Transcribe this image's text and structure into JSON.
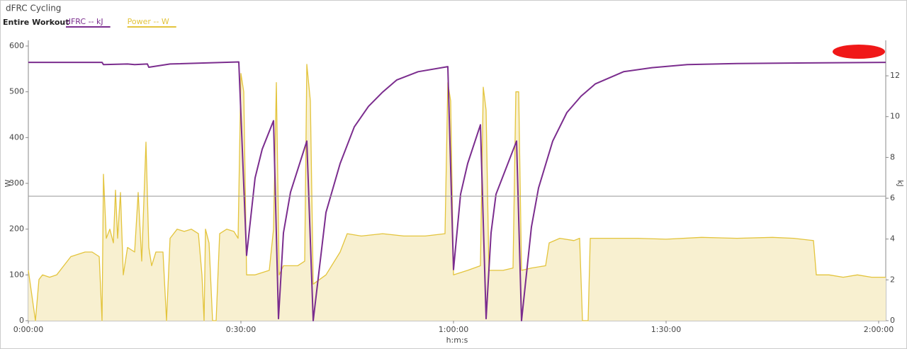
{
  "chart_data": {
    "type": "line",
    "title": "dFRC Cycling",
    "subtitle": "Entire Workout",
    "x_label": "h:m:s",
    "y_label": "W",
    "y2_label": "kJ",
    "xlim": [
      0,
      121
    ],
    "xticks": [
      {
        "value": 0,
        "label": "0:00:00"
      },
      {
        "value": 30,
        "label": "0:30:00"
      },
      {
        "value": 60,
        "label": "1:00:00"
      },
      {
        "value": 90,
        "label": "1:30:00"
      },
      {
        "value": 120,
        "label": "2:00:00"
      }
    ],
    "ylim": [
      0,
      600
    ],
    "yticks": [
      0,
      100,
      200,
      300,
      400,
      500,
      600
    ],
    "y2lim": [
      0,
      13.46
    ],
    "y2ticks": [
      0,
      2,
      4,
      6,
      8,
      10,
      12
    ],
    "reference_line": 272,
    "series": [
      {
        "name": "dFRC  -- kJ",
        "color": "#7b2d8e",
        "axis": "y2",
        "x": [
          0,
          10.4,
          10.6,
          14,
          15,
          16.8,
          17,
          20,
          29.7,
          30.8,
          32,
          33,
          34.6,
          35.3,
          36,
          37,
          39.3,
          40.2,
          42,
          44,
          46,
          48,
          50,
          52,
          55,
          59.2,
          60,
          61,
          62,
          63.8,
          64.6,
          65.3,
          66,
          68.9,
          69.6,
          71,
          72,
          74,
          76,
          78,
          80,
          84,
          88,
          93,
          100,
          110,
          121
        ],
        "values": [
          12.66,
          12.66,
          12.55,
          12.58,
          12.55,
          12.58,
          12.42,
          12.58,
          12.68,
          3.2,
          7.0,
          8.4,
          9.8,
          0.1,
          4.3,
          6.3,
          8.8,
          0,
          5.3,
          7.7,
          9.5,
          10.5,
          11.2,
          11.8,
          12.2,
          12.45,
          2.5,
          6.2,
          7.7,
          9.6,
          0.1,
          4.3,
          6.2,
          8.8,
          0,
          4.6,
          6.5,
          8.8,
          10.2,
          11.0,
          11.6,
          12.2,
          12.4,
          12.55,
          12.6,
          12.63,
          12.66
        ]
      },
      {
        "name": "Power  -- W",
        "color": "#e3c43c",
        "axis": "y",
        "fill": "#f8f0d0",
        "x": [
          0,
          1,
          1.5,
          2,
          3,
          4,
          5,
          6,
          7,
          8,
          9,
          10,
          10.4,
          10.6,
          11,
          11.5,
          12,
          12.3,
          12.6,
          13,
          13.4,
          14,
          15,
          15.5,
          16,
          16.6,
          17,
          17.4,
          18,
          19,
          19.5,
          20,
          21,
          22,
          23,
          24,
          24.5,
          24.8,
          25,
          25.5,
          26,
          26.5,
          27,
          28,
          29,
          29.6,
          30,
          30.4,
          30.8,
          32,
          34,
          34.6,
          35,
          35.4,
          36,
          38,
          39,
          39.3,
          39.8,
          40.2,
          42,
          44,
          45,
          47,
          50,
          53,
          56,
          58.8,
          59.2,
          59.6,
          60,
          62,
          63.8,
          64.2,
          64.6,
          65,
          67,
          68.4,
          68.8,
          69.2,
          69.6,
          71,
          73,
          73.5,
          75,
          77,
          77.8,
          78.2,
          79,
          79.3,
          82,
          86,
          90,
          95,
          100,
          105,
          108,
          110.8,
          111.2,
          113,
          115,
          117,
          119,
          121
        ],
        "values": [
          110,
          0,
          90,
          100,
          95,
          100,
          120,
          140,
          145,
          150,
          150,
          140,
          0,
          320,
          180,
          200,
          170,
          285,
          180,
          280,
          100,
          160,
          150,
          280,
          130,
          390,
          160,
          120,
          150,
          150,
          0,
          180,
          200,
          195,
          200,
          190,
          100,
          0,
          200,
          170,
          0,
          0,
          190,
          200,
          195,
          180,
          540,
          500,
          100,
          100,
          110,
          200,
          520,
          100,
          120,
          120,
          130,
          560,
          480,
          80,
          100,
          150,
          190,
          185,
          190,
          185,
          185,
          190,
          520,
          480,
          100,
          110,
          120,
          510,
          460,
          110,
          110,
          115,
          500,
          500,
          110,
          115,
          120,
          170,
          180,
          175,
          180,
          0,
          0,
          180,
          180,
          180,
          178,
          182,
          180,
          182,
          180,
          175,
          100,
          100,
          95,
          100,
          95,
          95
        ]
      }
    ]
  }
}
